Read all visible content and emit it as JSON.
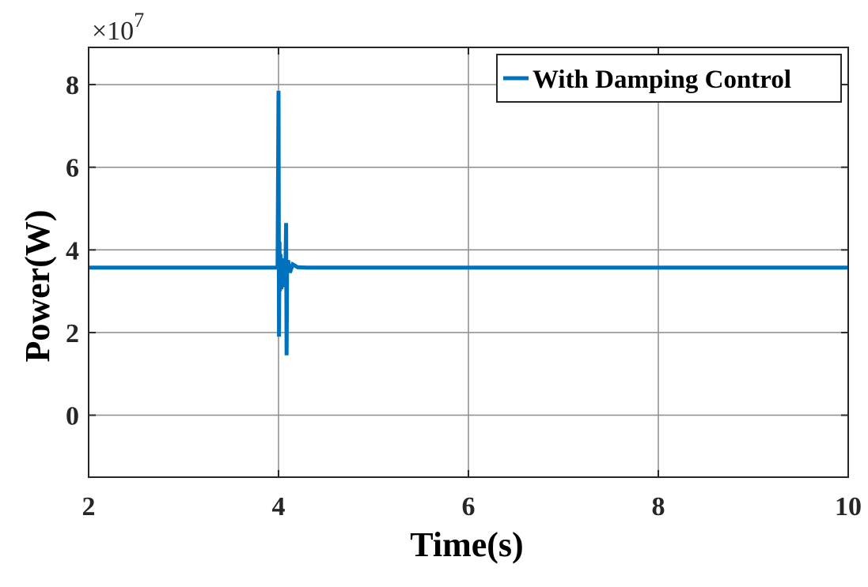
{
  "chart_data": {
    "type": "line",
    "xlabel": "Time(s)",
    "ylabel": "Power(W)",
    "y_exponent_label": "×10",
    "y_exponent_power": "7",
    "y_scale_factor": 10000000,
    "xlim": [
      2,
      10
    ],
    "ylim": [
      -1.5,
      8.9
    ],
    "x_ticks": [
      2,
      4,
      6,
      8,
      10
    ],
    "y_ticks": [
      0,
      2,
      4,
      6,
      8
    ],
    "grid": true,
    "legend_position": "top-right",
    "series": [
      {
        "name": "With Damping Control",
        "color": "#0072BD",
        "x": [
          2,
          3.99,
          4.0,
          4.005,
          4.01,
          4.015,
          4.02,
          4.03,
          4.04,
          4.05,
          4.06,
          4.07,
          4.08,
          4.085,
          4.09,
          4.1,
          4.12,
          4.15,
          4.2,
          4.3,
          4.5,
          10
        ],
        "y": [
          3.57,
          3.57,
          7.85,
          1.9,
          4.2,
          3.0,
          3.9,
          3.05,
          3.75,
          3.2,
          3.8,
          3.1,
          4.65,
          1.45,
          3.45,
          3.75,
          3.45,
          3.65,
          3.58,
          3.57,
          3.57,
          3.57
        ]
      }
    ]
  }
}
